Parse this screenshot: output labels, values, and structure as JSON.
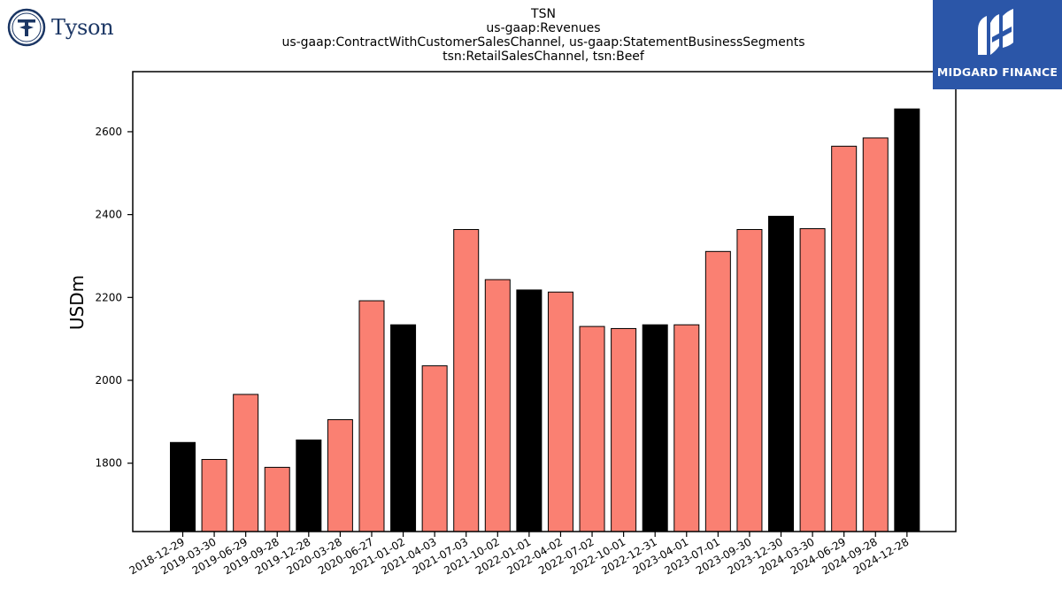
{
  "logos": {
    "left": {
      "text": "Tyson",
      "icon": "tyson-t-emblem-icon",
      "color": "#1b3664"
    },
    "right": {
      "text": "MIDGARD FINANCE",
      "icon": "midgard-m-icon",
      "background": "#2b56a8"
    }
  },
  "chart_data": {
    "type": "bar",
    "title_lines": [
      "TSN",
      "us-gaap:Revenues",
      "us-gaap:ContractWithCustomerSalesChannel, us-gaap:StatementBusinessSegments",
      "tsn:RetailSalesChannel, tsn:Beef"
    ],
    "ylabel": "USDm",
    "xlabel": "",
    "ylim": [
      1635,
      2745
    ],
    "yticks": [
      1800,
      2000,
      2200,
      2400,
      2600
    ],
    "grid": false,
    "colors": {
      "quarter": "#fa8072",
      "year_end": "#000000",
      "edge": "#000000"
    },
    "categories": [
      "2018-12-29",
      "2019-03-30",
      "2019-06-29",
      "2019-09-28",
      "2019-12-28",
      "2020-03-28",
      "2020-06-27",
      "2021-01-02",
      "2021-04-03",
      "2021-07-03",
      "2021-10-02",
      "2022-01-01",
      "2022-04-02",
      "2022-07-02",
      "2022-10-01",
      "2022-12-31",
      "2023-04-01",
      "2023-07-01",
      "2023-09-30",
      "2023-12-30",
      "2024-03-30",
      "2024-06-29",
      "2024-09-28",
      "2024-12-28"
    ],
    "values": [
      1850,
      1809,
      1966,
      1790,
      1856,
      1905,
      2192,
      2134,
      2035,
      2364,
      2243,
      2218,
      2213,
      2130,
      2125,
      2134,
      2134,
      2311,
      2364,
      2396,
      2366,
      2565,
      2585,
      2655
    ],
    "highlight": [
      true,
      false,
      false,
      false,
      true,
      false,
      false,
      true,
      false,
      false,
      false,
      true,
      false,
      false,
      false,
      true,
      false,
      false,
      false,
      true,
      false,
      false,
      false,
      true
    ]
  }
}
